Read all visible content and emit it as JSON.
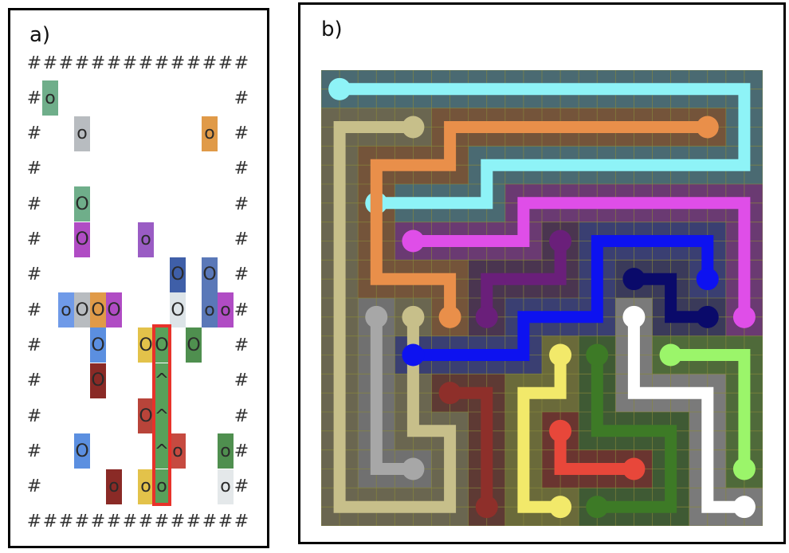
{
  "panel_a": {
    "label": "a)",
    "cols": 14,
    "rows": 14,
    "hash_char": "#",
    "colors": {
      "teal": "#6fae8a",
      "gray": "#b8bcc0",
      "orange": "#e09a48",
      "green": "#5f9e64",
      "purple": "#b04cc4",
      "violet": "#9a5cc4",
      "navy": "#3f5fa8",
      "blue": "#5b8fe0",
      "lightblue": "#6f9ae8",
      "white": "#dde4e8",
      "steel": "#5a78b8",
      "dblue": "#4a80d8",
      "yellow": "#e3c24a",
      "mgreen": "#59a05a",
      "maroon": "#a0302c",
      "red": "#c64a40",
      "rust": "#b8443a",
      "dgreen": "#4f8f4f",
      "pale": "#e4e8ea",
      "darkred": "#8a2a26"
    },
    "cells": [
      {
        "r": 1,
        "c": 1,
        "t": "o",
        "col": "teal"
      },
      {
        "r": 2,
        "c": 3,
        "t": "o",
        "col": "gray"
      },
      {
        "r": 2,
        "c": 11,
        "t": "o",
        "col": "orange"
      },
      {
        "r": 4,
        "c": 3,
        "t": "O",
        "col": "teal"
      },
      {
        "r": 5,
        "c": 3,
        "t": "O",
        "col": "purple"
      },
      {
        "r": 5,
        "c": 7,
        "t": "o",
        "col": "violet"
      },
      {
        "r": 6,
        "c": 9,
        "t": "O",
        "col": "navy"
      },
      {
        "r": 6,
        "c": 11,
        "t": "O",
        "col": "steel"
      },
      {
        "r": 7,
        "c": 2,
        "t": "o",
        "col": "lightblue"
      },
      {
        "r": 7,
        "c": 3,
        "t": "O",
        "col": "gray"
      },
      {
        "r": 7,
        "c": 4,
        "t": "O",
        "col": "orange"
      },
      {
        "r": 7,
        "c": 5,
        "t": "O",
        "col": "purple"
      },
      {
        "r": 7,
        "c": 9,
        "t": "O",
        "col": "white"
      },
      {
        "r": 7,
        "c": 11,
        "t": "o",
        "col": "steel"
      },
      {
        "r": 7,
        "c": 12,
        "t": "o",
        "col": "purple"
      },
      {
        "r": 8,
        "c": 4,
        "t": "O",
        "col": "blue"
      },
      {
        "r": 8,
        "c": 7,
        "t": "O",
        "col": "yellow"
      },
      {
        "r": 8,
        "c": 8,
        "t": "O",
        "col": "mgreen"
      },
      {
        "r": 8,
        "c": 10,
        "t": "O",
        "col": "dgreen"
      },
      {
        "r": 9,
        "c": 4,
        "t": "O",
        "col": "darkred"
      },
      {
        "r": 9,
        "c": 8,
        "t": "^",
        "col": "mgreen"
      },
      {
        "r": 10,
        "c": 7,
        "t": "O",
        "col": "rust"
      },
      {
        "r": 10,
        "c": 8,
        "t": "^",
        "col": "mgreen"
      },
      {
        "r": 11,
        "c": 3,
        "t": "O",
        "col": "blue"
      },
      {
        "r": 11,
        "c": 8,
        "t": "^",
        "col": "mgreen"
      },
      {
        "r": 11,
        "c": 9,
        "t": "o",
        "col": "red"
      },
      {
        "r": 11,
        "c": 12,
        "t": "o",
        "col": "dgreen"
      },
      {
        "r": 12,
        "c": 5,
        "t": "o",
        "col": "darkred"
      },
      {
        "r": 12,
        "c": 7,
        "t": "o",
        "col": "yellow"
      },
      {
        "r": 12,
        "c": 8,
        "t": "o",
        "col": "mgreen"
      },
      {
        "r": 12,
        "c": 12,
        "t": "o",
        "col": "pale"
      }
    ],
    "highlight": {
      "col": 8,
      "row_start": 8,
      "row_end": 12,
      "color": "#e8322b"
    }
  },
  "panel_b": {
    "label": "b)",
    "grid_size": 12,
    "board_bg": "#5c5c4c",
    "grid_line_color": "#8a8a3a",
    "flows": [
      {
        "name": "cyan",
        "color": "#8ef3f7",
        "shade": "#4a6a72",
        "path": [
          [
            11,
            0
          ],
          [
            0,
            0
          ],
          [
            0,
            0
          ]
        ],
        "pts": [
          [
            0,
            0
          ],
          [
            11,
            0
          ],
          [
            11,
            2
          ],
          [
            4,
            2
          ],
          [
            4,
            3
          ],
          [
            1,
            3
          ]
        ],
        "ends": [
          [
            0,
            0
          ],
          [
            1,
            3
          ]
        ]
      },
      {
        "name": "khaki",
        "color": "#c7bf8a",
        "shade": "#6a6650",
        "pts": [
          [
            2,
            1
          ],
          [
            0,
            1
          ],
          [
            0,
            11
          ],
          [
            3,
            11
          ],
          [
            3,
            9
          ],
          [
            2,
            9
          ],
          [
            2,
            6
          ]
        ],
        "ends": [
          [
            2,
            1
          ],
          [
            2,
            6
          ]
        ]
      },
      {
        "name": "orange",
        "color": "#e98f4a",
        "shade": "#74543a",
        "pts": [
          [
            10,
            1
          ],
          [
            3,
            1
          ],
          [
            3,
            2
          ],
          [
            1,
            2
          ],
          [
            1,
            5
          ],
          [
            3,
            5
          ],
          [
            3,
            6
          ]
        ],
        "ends": [
          [
            10,
            1
          ],
          [
            3,
            6
          ]
        ]
      },
      {
        "name": "magenta",
        "color": "#df4ee8",
        "shade": "#6a3a72",
        "pts": [
          [
            11,
            6
          ],
          [
            11,
            3
          ],
          [
            5,
            3
          ],
          [
            5,
            4
          ],
          [
            2,
            4
          ]
        ],
        "ends": [
          [
            11,
            6
          ],
          [
            2,
            4
          ]
        ]
      },
      {
        "name": "purple",
        "color": "#6a1f7a",
        "shade": "#4a3550",
        "pts": [
          [
            6,
            4
          ],
          [
            6,
            5
          ],
          [
            4,
            5
          ],
          [
            4,
            6
          ]
        ],
        "ends": [
          [
            6,
            4
          ],
          [
            4,
            6
          ]
        ]
      },
      {
        "name": "blue",
        "color": "#0d12f0",
        "shade": "#3a3f72",
        "pts": [
          [
            10,
            5
          ],
          [
            10,
            4
          ],
          [
            7,
            4
          ],
          [
            7,
            6
          ],
          [
            5,
            6
          ],
          [
            5,
            7
          ],
          [
            2,
            7
          ]
        ],
        "ends": [
          [
            10,
            5
          ],
          [
            2,
            7
          ]
        ]
      },
      {
        "name": "navy",
        "color": "#0a0a6a",
        "shade": "#3a3a5a",
        "pts": [
          [
            8,
            5
          ],
          [
            9,
            5
          ],
          [
            9,
            6
          ],
          [
            10,
            6
          ]
        ],
        "ends": [
          [
            8,
            5
          ],
          [
            10,
            6
          ]
        ]
      },
      {
        "name": "gray",
        "color": "#a7a7a7",
        "shade": "#707070",
        "pts": [
          [
            1,
            6
          ],
          [
            1,
            10
          ],
          [
            2,
            10
          ]
        ],
        "ends": [
          [
            1,
            6
          ],
          [
            2,
            10
          ]
        ]
      },
      {
        "name": "white",
        "color": "#ffffff",
        "shade": "#7a7a7a",
        "pts": [
          [
            8,
            6
          ],
          [
            8,
            8
          ],
          [
            10,
            8
          ],
          [
            10,
            11
          ],
          [
            11,
            11
          ]
        ],
        "ends": [
          [
            8,
            6
          ],
          [
            11,
            11
          ]
        ]
      },
      {
        "name": "darkred",
        "color": "#8e2f2a",
        "shade": "#5e3a34",
        "pts": [
          [
            3,
            8
          ],
          [
            4,
            8
          ],
          [
            4,
            11
          ]
        ],
        "ends": [
          [
            3,
            8
          ],
          [
            4,
            11
          ]
        ]
      },
      {
        "name": "yellow",
        "color": "#f2e96a",
        "shade": "#6a6a3a",
        "pts": [
          [
            6,
            7
          ],
          [
            6,
            8
          ],
          [
            5,
            8
          ],
          [
            5,
            11
          ],
          [
            6,
            11
          ]
        ],
        "ends": [
          [
            6,
            7
          ],
          [
            6,
            11
          ]
        ]
      },
      {
        "name": "green",
        "color": "#3d7a26",
        "shade": "#3f5a34",
        "pts": [
          [
            7,
            7
          ],
          [
            7,
            9
          ],
          [
            9,
            9
          ],
          [
            9,
            11
          ],
          [
            7,
            11
          ]
        ],
        "ends": [
          [
            7,
            7
          ],
          [
            7,
            11
          ]
        ]
      },
      {
        "name": "red",
        "color": "#e8473a",
        "shade": "#6a3530",
        "pts": [
          [
            6,
            9
          ],
          [
            6,
            10
          ],
          [
            8,
            10
          ]
        ],
        "ends": [
          [
            6,
            9
          ],
          [
            8,
            10
          ]
        ]
      },
      {
        "name": "lime",
        "color": "#9bf56a",
        "shade": "#4f6a3a",
        "pts": [
          [
            9,
            7
          ],
          [
            11,
            7
          ],
          [
            11,
            10
          ]
        ],
        "ends": [
          [
            9,
            7
          ],
          [
            11,
            10
          ]
        ]
      }
    ]
  }
}
